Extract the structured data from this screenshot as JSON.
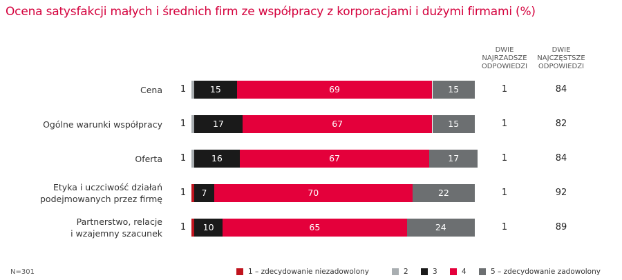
{
  "title": "Ocena satysfakcji małych i średnich firm ze współpracy z korporacjami i dużymi firmami (%)",
  "note": "N=301",
  "columns": {
    "bottom2": "DWIE NAJRZADSZE ODPOWIEDZI",
    "top2": "DWIE NAJCZĘSTSZE ODPOWIEDZI"
  },
  "colors": {
    "1": "#c0141e",
    "2": "#a9aeb1",
    "3": "#1a1a1a",
    "4": "#e4003b",
    "5": "#6c6f71",
    "title": "#d4003c"
  },
  "chart_data": {
    "type": "bar",
    "orientation": "horizontal",
    "stacked": true,
    "title": "Ocena satysfakcji małych i średnich firm ze współpracy z korporacjami i dużymi firmami (%)",
    "xlim": [
      0,
      100
    ],
    "grid": false,
    "legend_position": "bottom-right",
    "categories": [
      "Cena",
      "Ogólne warunki współpracy",
      "Oferta",
      "Etyka i uczciwość działań podejmowanych przez firmę",
      "Partnerstwo, relacje i wzajemny szacunek"
    ],
    "category_lines": [
      [
        "Cena"
      ],
      [
        "Ogólne warunki współpracy"
      ],
      [
        "Oferta"
      ],
      [
        "Etyka i uczciwość działań",
        "podejmowanych przez firmę"
      ],
      [
        "Partnerstwo, relacje",
        "i wzajemny szacunek"
      ]
    ],
    "series": [
      {
        "name": "1 – zdecydowanie niezadowolony",
        "values": [
          0,
          0,
          0,
          1,
          1
        ]
      },
      {
        "name": "2",
        "values": [
          1,
          1,
          1,
          0,
          0
        ]
      },
      {
        "name": "3",
        "values": [
          15,
          17,
          16,
          7,
          10
        ]
      },
      {
        "name": "4",
        "values": [
          69,
          67,
          67,
          70,
          65
        ]
      },
      {
        "name": "5 – zdecydowanie zadowolony",
        "values": [
          15,
          15,
          17,
          22,
          24
        ]
      }
    ],
    "data_labels": [
      [
        "",
        "",
        "15",
        "69",
        "15"
      ],
      [
        "",
        "",
        "17",
        "67",
        "15"
      ],
      [
        "",
        "",
        "16",
        "67",
        "17"
      ],
      [
        "",
        "",
        "7",
        "70",
        "22"
      ],
      [
        "",
        "",
        "10",
        "65",
        "24"
      ]
    ],
    "bottom2_values": [
      "1",
      "1",
      "1",
      "1",
      "1"
    ],
    "small_labels": [
      "1",
      "1",
      "1",
      "1",
      "1"
    ],
    "top2_values": [
      "84",
      "82",
      "84",
      "92",
      "89"
    ]
  }
}
